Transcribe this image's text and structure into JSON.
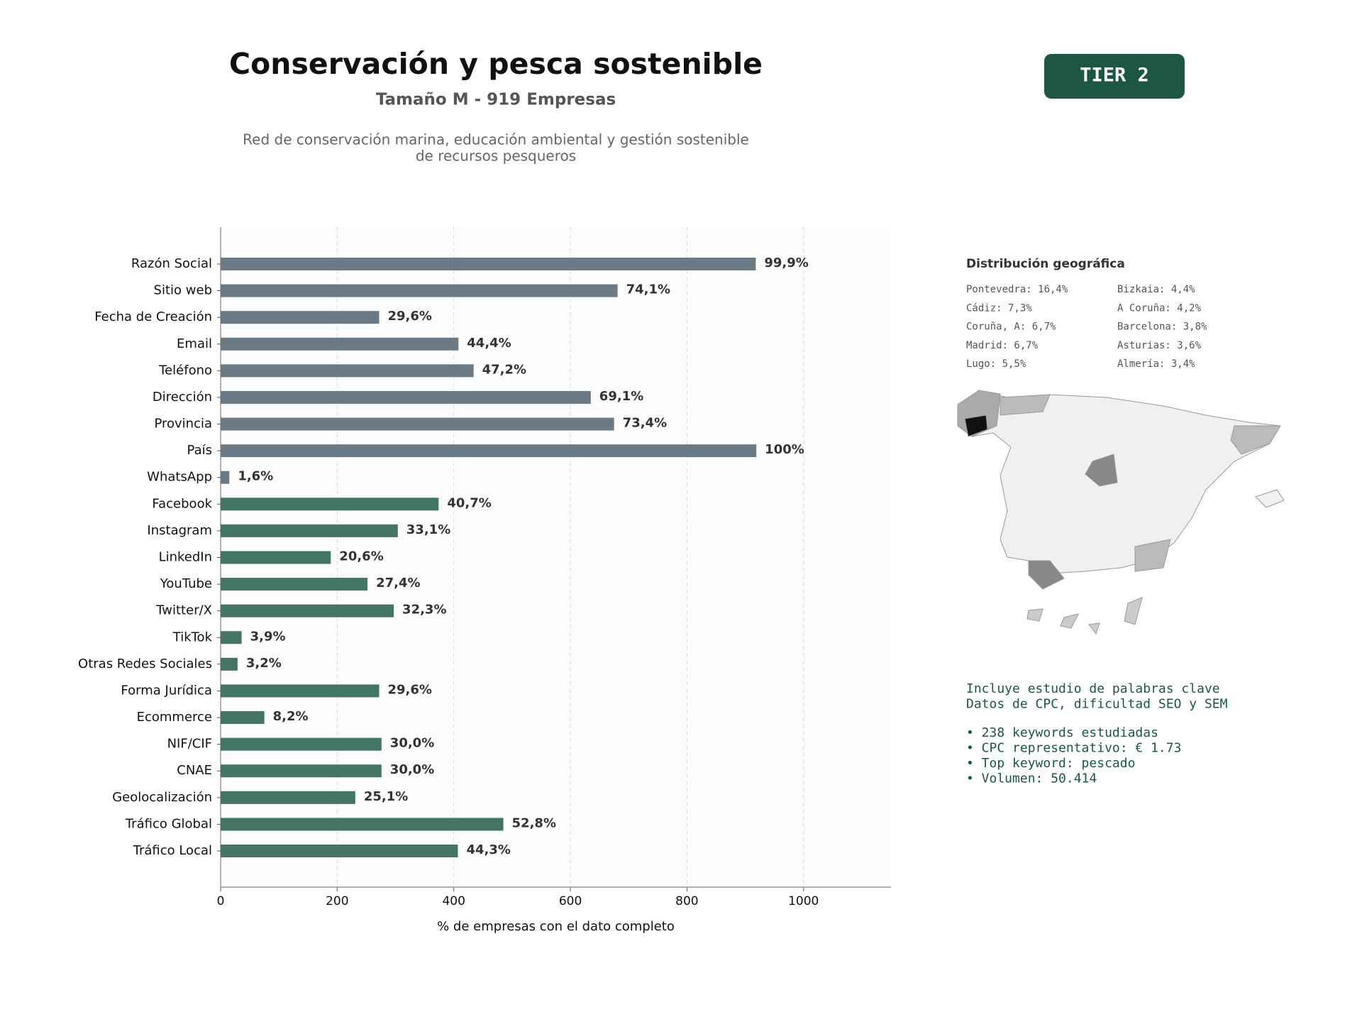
{
  "chart_data": {
    "type": "barh",
    "title": "Conservación y pesca sostenible",
    "subtitle": "Tamaño M - 919 Empresas",
    "description": [
      "Red de conservación marina, educación ambiental y gestión sostenible",
      "de recursos pesqueros"
    ],
    "xlabel": "% de empresas con el dato completo",
    "categories": [
      "Razón Social",
      "Sitio web",
      "Fecha de Creación",
      "Email",
      "Teléfono",
      "Dirección",
      "Provincia",
      "País",
      "WhatsApp",
      "Facebook",
      "Instagram",
      "LinkedIn",
      "YouTube",
      "Twitter/X",
      "TikTok",
      "Otras Redes Sociales",
      "Forma Jurídica",
      "Ecommerce",
      "NIF/CIF",
      "CNAE",
      "Geolocalización",
      "Tráfico Global",
      "Tráfico Local"
    ],
    "values": [
      918,
      681,
      272,
      408,
      434,
      635,
      675,
      919,
      15,
      374,
      304,
      189,
      252,
      297,
      36,
      29,
      272,
      75,
      276,
      276,
      231,
      485,
      407
    ],
    "value_labels": [
      "99,9%",
      "74,1%",
      "29,6%",
      "44,4%",
      "47,2%",
      "69,1%",
      "73,4%",
      "100%",
      "1,6%",
      "40,7%",
      "33,1%",
      "20,6%",
      "27,4%",
      "32,3%",
      "3,9%",
      "3,2%",
      "29,6%",
      "8,2%",
      "30,0%",
      "30,0%",
      "25,1%",
      "52,8%",
      "44,3%"
    ],
    "colors": [
      "#6c7a86",
      "#6c7a86",
      "#6c7a86",
      "#6c7a86",
      "#6c7a86",
      "#6c7a86",
      "#6c7a86",
      "#6c7a86",
      "#6c7a86",
      "#447563",
      "#447563",
      "#447563",
      "#447563",
      "#447563",
      "#447563",
      "#447563",
      "#447563",
      "#447563",
      "#447563",
      "#447563",
      "#447563",
      "#447563",
      "#447563"
    ],
    "xlim": [
      0,
      1150
    ],
    "xticks": [
      0,
      200,
      400,
      600,
      800,
      1000
    ],
    "grid": true
  },
  "badge": "TIER 2",
  "geo": {
    "title": "Distribución geográfica",
    "entries": [
      "Pontevedra: 16,4%",
      "Cádiz: 7,3%",
      "Coruña, A: 6,7%",
      "Madrid: 6,7%",
      "Lugo: 5,5%",
      "Bizkaia: 4,4%",
      "A Coruña: 4,2%",
      "Barcelona: 3,8%",
      "Asturias: 3,6%",
      "Almería: 3,4%"
    ]
  },
  "keywords": {
    "intro": [
      "Incluye estudio de palabras clave",
      "Datos de CPC, dificultad SEO y SEM"
    ],
    "bullets": [
      "• 238 keywords estudiadas",
      "• CPC representativo: € 1.73",
      "• Top keyword: pescado",
      "• Volumen: 50.414"
    ]
  }
}
